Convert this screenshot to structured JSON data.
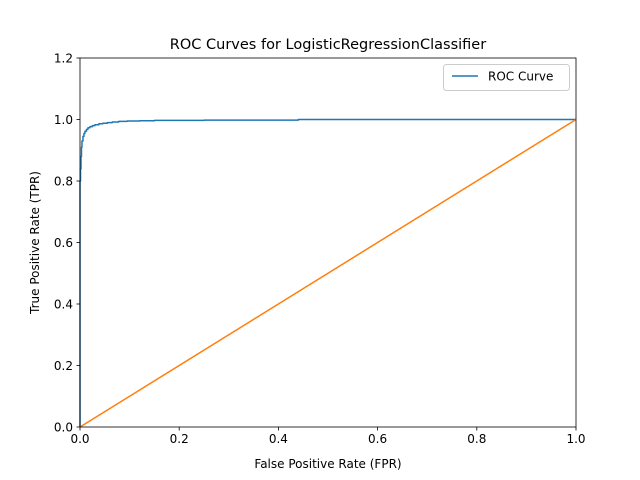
{
  "chart_data": {
    "type": "line",
    "title": "ROC Curves for LogisticRegressionClassifier",
    "xlabel": "False Positive Rate (FPR)",
    "ylabel": "True Positive Rate (TPR)",
    "xlim": [
      0.0,
      1.0
    ],
    "ylim": [
      0.0,
      1.2
    ],
    "xticks": [
      "0.0",
      "0.2",
      "0.4",
      "0.6",
      "0.8",
      "1.0"
    ],
    "yticks": [
      "0.0",
      "0.2",
      "0.4",
      "0.6",
      "0.8",
      "1.0",
      "1.2"
    ],
    "grid": false,
    "legend": {
      "location": "upper-right",
      "entries": [
        "ROC Curve"
      ]
    },
    "series": [
      {
        "name": "ROC Curve",
        "color": "#1f77b4",
        "x": [
          0.0,
          0.0,
          0.001,
          0.001,
          0.002,
          0.002,
          0.003,
          0.003,
          0.004,
          0.004,
          0.006,
          0.006,
          0.008,
          0.008,
          0.01,
          0.01,
          0.013,
          0.013,
          0.016,
          0.016,
          0.02,
          0.02,
          0.025,
          0.025,
          0.03,
          0.03,
          0.038,
          0.038,
          0.046,
          0.046,
          0.055,
          0.055,
          0.065,
          0.065,
          0.078,
          0.078,
          0.095,
          0.095,
          0.12,
          0.12,
          0.15,
          0.15,
          0.25,
          0.25,
          0.44,
          0.44,
          1.0
        ],
        "y": [
          0.0,
          0.8,
          0.8,
          0.84,
          0.84,
          0.88,
          0.88,
          0.91,
          0.91,
          0.93,
          0.93,
          0.945,
          0.945,
          0.955,
          0.955,
          0.962,
          0.962,
          0.968,
          0.968,
          0.973,
          0.973,
          0.977,
          0.977,
          0.98,
          0.98,
          0.983,
          0.983,
          0.986,
          0.986,
          0.988,
          0.988,
          0.99,
          0.99,
          0.992,
          0.992,
          0.994,
          0.994,
          0.995,
          0.995,
          0.996,
          0.996,
          0.997,
          0.997,
          0.998,
          0.998,
          1.0,
          1.0
        ]
      },
      {
        "color": "#ff7f0e",
        "x": [
          0.0,
          1.0
        ],
        "y": [
          0.0,
          1.0
        ]
      }
    ]
  }
}
